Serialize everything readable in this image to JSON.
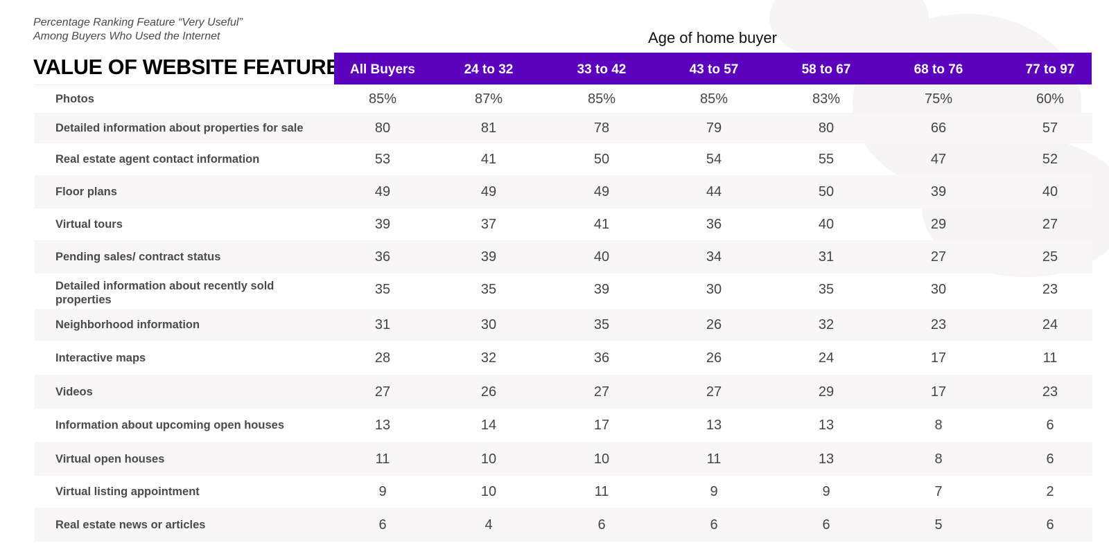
{
  "subtitle": {
    "line1": "Percentage Ranking Feature “Very Useful”",
    "line2": "Among Buyers Who Used the Internet"
  },
  "title": "VALUE OF WEBSITE FEATURES",
  "age_group_title": "Age of home buyer",
  "colors": {
    "header_bg": "#5b00bd",
    "alt_row": "#f8f6f7"
  },
  "chart_data": {
    "type": "table",
    "columns": [
      "All Buyers",
      "24 to 32",
      "33 to 42",
      "43 to 57",
      "58 to 67",
      "68 to 76",
      "77 to 97"
    ],
    "rows": [
      {
        "label": "Photos",
        "values": [
          "85%",
          "87%",
          "85%",
          "85%",
          "83%",
          "75%",
          "60%"
        ]
      },
      {
        "label": "Detailed information about properties for sale",
        "values": [
          "80",
          "81",
          "78",
          "79",
          "80",
          "66",
          "57"
        ]
      },
      {
        "label": "Real estate agent contact information",
        "values": [
          "53",
          "41",
          "50",
          "54",
          "55",
          "47",
          "52"
        ]
      },
      {
        "label": "Floor plans",
        "values": [
          "49",
          "49",
          "49",
          "44",
          "50",
          "39",
          "40"
        ]
      },
      {
        "label": "Virtual tours",
        "values": [
          "39",
          "37",
          "41",
          "36",
          "40",
          "29",
          "27"
        ]
      },
      {
        "label": "Pending sales/ contract status",
        "values": [
          "36",
          "39",
          "40",
          "34",
          "31",
          "27",
          "25"
        ]
      },
      {
        "label": "Detailed information about recently sold properties",
        "values": [
          "35",
          "35",
          "39",
          "30",
          "35",
          "30",
          "23"
        ]
      },
      {
        "label": "Neighborhood information",
        "values": [
          "31",
          "30",
          "35",
          "26",
          "32",
          "23",
          "24"
        ]
      },
      {
        "label": "Interactive maps",
        "values": [
          "28",
          "32",
          "36",
          "26",
          "24",
          "17",
          "11"
        ]
      },
      {
        "label": "Videos",
        "values": [
          "27",
          "26",
          "27",
          "27",
          "29",
          "17",
          "23"
        ]
      },
      {
        "label": "Information about upcoming open houses",
        "values": [
          "13",
          "14",
          "17",
          "13",
          "13",
          "8",
          "6"
        ]
      },
      {
        "label": "Virtual open houses",
        "values": [
          "11",
          "10",
          "10",
          "11",
          "13",
          "8",
          "6"
        ]
      },
      {
        "label": "Virtual listing appointment",
        "values": [
          "9",
          "10",
          "11",
          "9",
          "9",
          "7",
          "2"
        ]
      },
      {
        "label": "Real estate news or articles",
        "values": [
          "6",
          "4",
          "6",
          "6",
          "6",
          "5",
          "6"
        ]
      }
    ]
  }
}
